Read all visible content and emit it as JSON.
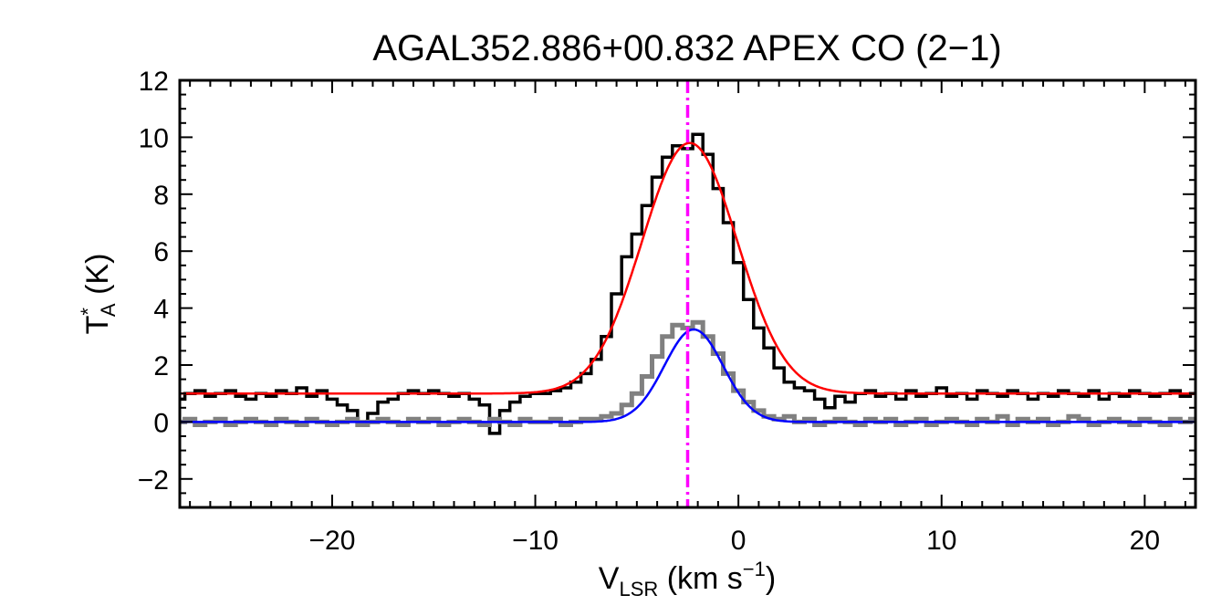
{
  "chart_data": {
    "type": "line",
    "title": "AGAL352.886+00.832  APEX CO (2−1)",
    "xlabel": {
      "main": "V",
      "sub": "LSR",
      "unit_open": " (km s",
      "unit_sup": "−1",
      "unit_close": ")"
    },
    "ylabel": {
      "main": "T",
      "sup": "*",
      "sub": "A",
      "unit": " (K)"
    },
    "xlim": [
      -27.5,
      22.5
    ],
    "ylim": [
      -3,
      12
    ],
    "xticks": [
      -20,
      -10,
      0,
      10,
      20
    ],
    "xtick_labels": [
      "−20",
      "−10",
      "0",
      "10",
      "20"
    ],
    "yticks": [
      -2,
      0,
      2,
      4,
      6,
      8,
      10,
      12
    ],
    "ytick_labels": [
      "−2",
      "0",
      "2",
      "4",
      "6",
      "8",
      "10",
      "12"
    ],
    "vline": {
      "x": -2.5,
      "color": "#ff00ff",
      "style": "dash-dot"
    },
    "grid": false,
    "series": [
      {
        "style": "step",
        "color": "#000000",
        "x": [
          -27.5,
          -27.0,
          -26.5,
          -26.0,
          -25.5,
          -25.0,
          -24.5,
          -24.0,
          -23.5,
          -23.0,
          -22.5,
          -22.0,
          -21.5,
          -21.0,
          -20.5,
          -20.0,
          -19.5,
          -19.0,
          -18.5,
          -18.0,
          -17.5,
          -17.0,
          -16.5,
          -16.0,
          -15.5,
          -15.0,
          -14.5,
          -14.0,
          -13.5,
          -13.0,
          -12.5,
          -12.0,
          -11.5,
          -11.0,
          -10.5,
          -10.0,
          -9.5,
          -9.0,
          -8.5,
          -8.0,
          -7.5,
          -7.0,
          -6.5,
          -6.0,
          -5.5,
          -5.0,
          -4.5,
          -4.0,
          -3.5,
          -3.0,
          -2.5,
          -2.0,
          -1.5,
          -1.0,
          -0.5,
          0.0,
          0.5,
          1.0,
          1.5,
          2.0,
          2.5,
          3.0,
          3.5,
          4.0,
          4.5,
          5.0,
          5.5,
          6.0,
          6.5,
          7.0,
          7.5,
          8.0,
          8.5,
          9.0,
          9.5,
          10.0,
          10.5,
          11.0,
          11.5,
          12.0,
          12.5,
          13.0,
          13.5,
          14.0,
          14.5,
          15.0,
          15.5,
          16.0,
          16.5,
          17.0,
          17.5,
          18.0,
          18.5,
          19.0,
          19.5,
          20.0,
          20.5,
          21.0,
          21.5,
          22.0,
          22.5
        ],
        "y": [
          0.8,
          1.0,
          1.1,
          0.9,
          1.0,
          1.1,
          0.9,
          0.8,
          1.0,
          0.9,
          1.1,
          1.0,
          1.2,
          0.9,
          1.1,
          0.8,
          0.6,
          0.4,
          0.0,
          0.3,
          0.7,
          0.8,
          1.0,
          1.1,
          1.0,
          1.1,
          1.0,
          0.9,
          1.0,
          0.8,
          0.6,
          -0.4,
          0.4,
          0.7,
          0.9,
          1.0,
          1.0,
          1.1,
          1.2,
          1.4,
          1.7,
          2.2,
          3.0,
          4.5,
          5.8,
          6.6,
          7.6,
          8.6,
          9.3,
          9.7,
          9.6,
          10.1,
          9.4,
          8.2,
          7.0,
          5.6,
          4.3,
          3.3,
          2.6,
          1.9,
          1.4,
          1.2,
          1.1,
          0.8,
          0.5,
          0.9,
          0.7,
          1.0,
          1.1,
          0.9,
          1.0,
          0.8,
          1.1,
          0.9,
          1.0,
          1.2,
          0.9,
          1.0,
          0.8,
          1.1,
          1.0,
          0.9,
          1.1,
          1.0,
          0.8,
          1.0,
          0.9,
          1.1,
          1.0,
          0.9,
          1.1,
          0.8,
          1.0,
          0.9,
          1.1,
          1.0,
          0.9,
          1.0,
          1.1,
          0.9,
          1.0
        ]
      },
      {
        "style": "step",
        "color": "#808080",
        "x": [
          -27.5,
          -27.0,
          -26.5,
          -26.0,
          -25.5,
          -25.0,
          -24.5,
          -24.0,
          -23.5,
          -23.0,
          -22.5,
          -22.0,
          -21.5,
          -21.0,
          -20.5,
          -20.0,
          -19.5,
          -19.0,
          -18.5,
          -18.0,
          -17.5,
          -17.0,
          -16.5,
          -16.0,
          -15.5,
          -15.0,
          -14.5,
          -14.0,
          -13.5,
          -13.0,
          -12.5,
          -12.0,
          -11.5,
          -11.0,
          -10.5,
          -10.0,
          -9.5,
          -9.0,
          -8.5,
          -8.0,
          -7.5,
          -7.0,
          -6.5,
          -6.0,
          -5.5,
          -5.0,
          -4.5,
          -4.0,
          -3.5,
          -3.0,
          -2.5,
          -2.0,
          -1.5,
          -1.0,
          -0.5,
          0.0,
          0.5,
          1.0,
          1.5,
          2.0,
          2.5,
          3.0,
          3.5,
          4.0,
          4.5,
          5.0,
          5.5,
          6.0,
          6.5,
          7.0,
          7.5,
          8.0,
          8.5,
          9.0,
          9.5,
          10.0,
          10.5,
          11.0,
          11.5,
          12.0,
          12.5,
          13.0,
          13.5,
          14.0,
          14.5,
          15.0,
          15.5,
          16.0,
          16.5,
          17.0,
          17.5,
          18.0,
          18.5,
          19.0,
          19.5,
          20.0,
          20.5,
          21.0,
          21.5,
          22.0,
          22.5
        ],
        "y": [
          0.0,
          0.1,
          -0.1,
          0.0,
          0.1,
          -0.1,
          0.0,
          0.1,
          0.0,
          -0.1,
          0.1,
          0.0,
          -0.1,
          0.1,
          0.0,
          -0.1,
          0.0,
          0.1,
          -0.1,
          0.0,
          0.1,
          0.0,
          -0.1,
          0.1,
          0.0,
          0.1,
          -0.1,
          0.0,
          0.1,
          0.0,
          -0.1,
          0.1,
          0.0,
          -0.1,
          0.1,
          0.0,
          0.0,
          0.1,
          -0.1,
          0.0,
          0.1,
          0.1,
          0.2,
          0.3,
          0.6,
          1.0,
          1.6,
          2.3,
          3.0,
          3.4,
          3.3,
          3.5,
          3.0,
          2.4,
          1.7,
          1.1,
          0.7,
          0.4,
          0.2,
          0.1,
          0.2,
          0.0,
          0.1,
          -0.1,
          0.0,
          0.1,
          0.0,
          -0.1,
          0.1,
          0.0,
          0.1,
          -0.1,
          0.0,
          0.1,
          -0.1,
          0.0,
          0.1,
          0.0,
          -0.1,
          0.1,
          0.0,
          0.2,
          -0.1,
          0.1,
          0.0,
          0.1,
          -0.1,
          0.0,
          0.2,
          0.1,
          -0.1,
          0.0,
          0.1,
          0.0,
          -0.1,
          0.1,
          0.0,
          -0.1,
          0.1,
          0.0,
          0.1
        ]
      },
      {
        "style": "gaussian",
        "color": "#ff0000",
        "baseline": 1.0,
        "amplitude": 8.8,
        "center": -2.4,
        "sigma": 2.35
      },
      {
        "style": "gaussian",
        "color": "#0000ff",
        "baseline": 0.0,
        "amplitude": 3.25,
        "center": -2.2,
        "sigma": 1.45
      }
    ]
  }
}
